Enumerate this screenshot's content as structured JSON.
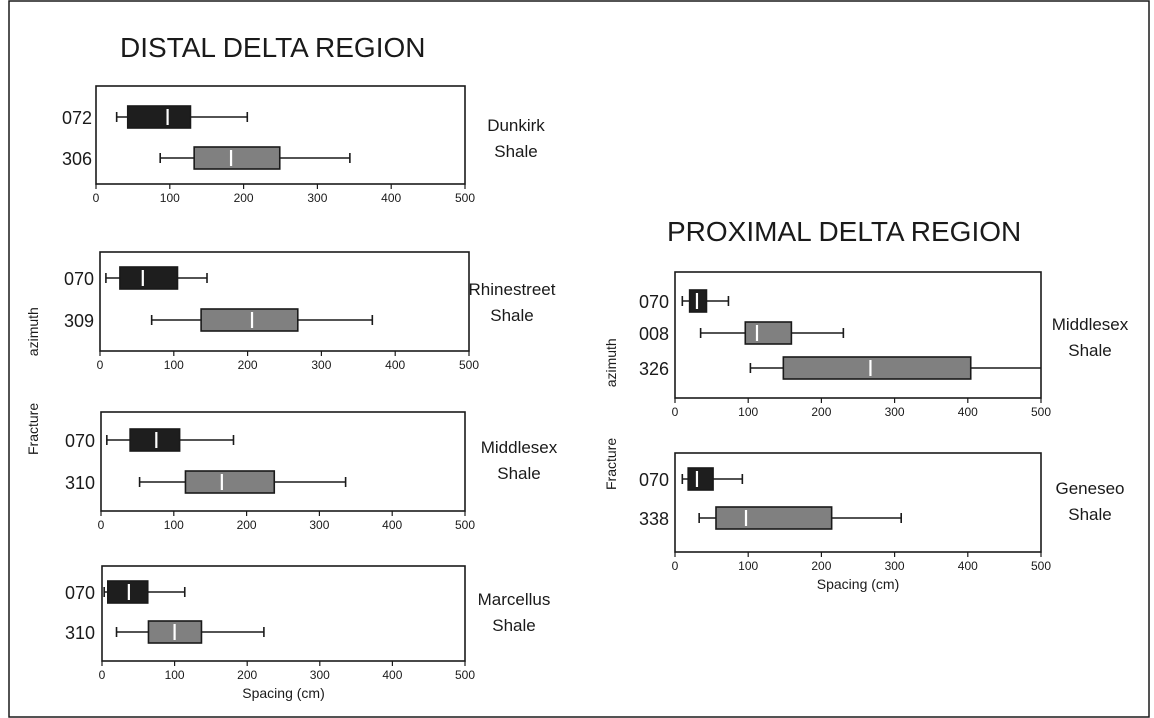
{
  "frame_border": true,
  "colors": {
    "box_072_070": "#1e1e1e",
    "box_other": "#808080",
    "median": "#ffffff",
    "stroke": "#1a1a1a"
  },
  "regions": [
    {
      "title": "DISTAL DELTA REGION",
      "ylabel": "Fracture            azimuth"
    },
    {
      "title": "PROXIMAL DELTA REGION",
      "ylabel": "Fracture             azimuth"
    }
  ],
  "chart_data": [
    {
      "type": "box",
      "region": "DISTAL DELTA REGION",
      "unit_label": [
        "Dunkirk",
        "Shale"
      ],
      "xlabel": "",
      "xlim": [
        0,
        500
      ],
      "xticks": [
        0,
        100,
        200,
        300,
        400,
        500
      ],
      "rows": [
        {
          "label": "072",
          "color": "dark",
          "whisker_low": 28,
          "q1": 43,
          "median": 97,
          "q3": 128,
          "whisker_high": 205
        },
        {
          "label": "306",
          "color": "gray",
          "whisker_low": 87,
          "q1": 133,
          "median": 183,
          "q3": 249,
          "whisker_high": 344
        }
      ]
    },
    {
      "type": "box",
      "region": "DISTAL DELTA REGION",
      "unit_label": [
        "Rhinestreet",
        "Shale"
      ],
      "xlabel": "",
      "xlim": [
        0,
        500
      ],
      "xticks": [
        0,
        100,
        200,
        300,
        400,
        500
      ],
      "rows": [
        {
          "label": "070",
          "color": "dark",
          "whisker_low": 8,
          "q1": 27,
          "median": 58,
          "q3": 105,
          "whisker_high": 145
        },
        {
          "label": "309",
          "color": "gray",
          "whisker_low": 70,
          "q1": 137,
          "median": 206,
          "q3": 268,
          "whisker_high": 369
        }
      ]
    },
    {
      "type": "box",
      "region": "DISTAL DELTA REGION",
      "unit_label": [
        "Middlesex",
        "Shale"
      ],
      "xlabel": "",
      "xlim": [
        0,
        500
      ],
      "xticks": [
        0,
        100,
        200,
        300,
        400,
        500
      ],
      "rows": [
        {
          "label": "070",
          "color": "dark",
          "whisker_low": 8,
          "q1": 40,
          "median": 76,
          "q3": 108,
          "whisker_high": 182
        },
        {
          "label": "310",
          "color": "gray",
          "whisker_low": 53,
          "q1": 116,
          "median": 166,
          "q3": 238,
          "whisker_high": 336
        }
      ]
    },
    {
      "type": "box",
      "region": "DISTAL DELTA REGION",
      "unit_label": [
        "Marcellus",
        "Shale"
      ],
      "xlabel": "Spacing (cm)",
      "xlim": [
        0,
        500
      ],
      "xticks": [
        0,
        100,
        200,
        300,
        400,
        500
      ],
      "rows": [
        {
          "label": "070",
          "color": "dark",
          "whisker_low": 3,
          "q1": 8,
          "median": 37,
          "q3": 63,
          "whisker_high": 114
        },
        {
          "label": "310",
          "color": "gray",
          "whisker_low": 20,
          "q1": 64,
          "median": 100,
          "q3": 137,
          "whisker_high": 223
        }
      ]
    },
    {
      "type": "box",
      "region": "PROXIMAL DELTA REGION",
      "unit_label": [
        "Middlesex",
        "Shale"
      ],
      "xlabel": "",
      "xlim": [
        0,
        500
      ],
      "xticks": [
        0,
        100,
        200,
        300,
        400,
        500
      ],
      "rows": [
        {
          "label": "070",
          "color": "dark",
          "whisker_low": 10,
          "q1": 20,
          "median": 30,
          "q3": 43,
          "whisker_high": 73
        },
        {
          "label": "008",
          "color": "gray",
          "whisker_low": 35,
          "q1": 96,
          "median": 112,
          "q3": 159,
          "whisker_high": 230
        },
        {
          "label": "326",
          "color": "gray",
          "whisker_low": 103,
          "q1": 148,
          "median": 267,
          "q3": 404,
          "whisker_high": 500
        }
      ]
    },
    {
      "type": "box",
      "region": "PROXIMAL DELTA REGION",
      "unit_label": [
        "Geneseo",
        "Shale"
      ],
      "xlabel": "Spacing (cm)",
      "xlim": [
        0,
        500
      ],
      "xticks": [
        0,
        100,
        200,
        300,
        400,
        500
      ],
      "rows": [
        {
          "label": "070",
          "color": "dark",
          "whisker_low": 10,
          "q1": 18,
          "median": 30,
          "q3": 52,
          "whisker_high": 92
        },
        {
          "label": "338",
          "color": "gray",
          "whisker_low": 33,
          "q1": 56,
          "median": 97,
          "q3": 214,
          "whisker_high": 309
        }
      ]
    }
  ]
}
